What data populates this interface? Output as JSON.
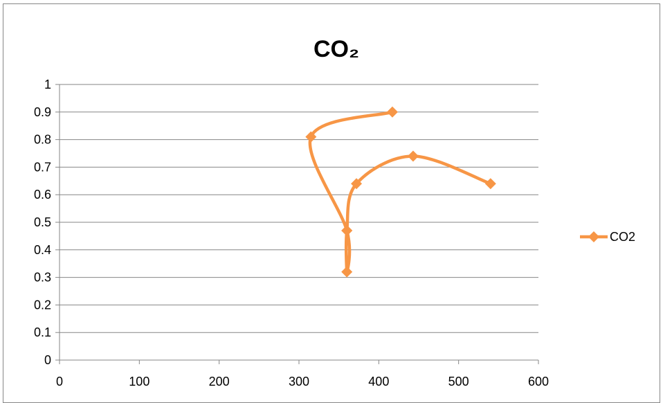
{
  "chart_data": {
    "type": "scatter",
    "title": "CO₂",
    "xlabel": "",
    "ylabel": "",
    "xlim": [
      0,
      600
    ],
    "ylim": [
      0,
      1
    ],
    "x_ticks": [
      "0",
      "100",
      "200",
      "300",
      "400",
      "500",
      "600"
    ],
    "y_ticks": [
      "0",
      "0.1",
      "0.2",
      "0.3",
      "0.4",
      "0.5",
      "0.6",
      "0.7",
      "0.8",
      "0.9",
      "1"
    ],
    "grid": "horizontal",
    "smooth_lines": true,
    "legend_position": "right",
    "series": [
      {
        "name": "CO2",
        "color": "#F79646",
        "marker": "diamond",
        "points": [
          {
            "x": 417,
            "y": 0.9
          },
          {
            "x": 315,
            "y": 0.81
          },
          {
            "x": 360,
            "y": 0.47
          },
          {
            "x": 360,
            "y": 0.32
          },
          {
            "x": 360,
            "y": 0.47
          },
          {
            "x": 372,
            "y": 0.64
          },
          {
            "x": 443,
            "y": 0.74
          },
          {
            "x": 540,
            "y": 0.64
          }
        ]
      }
    ]
  }
}
